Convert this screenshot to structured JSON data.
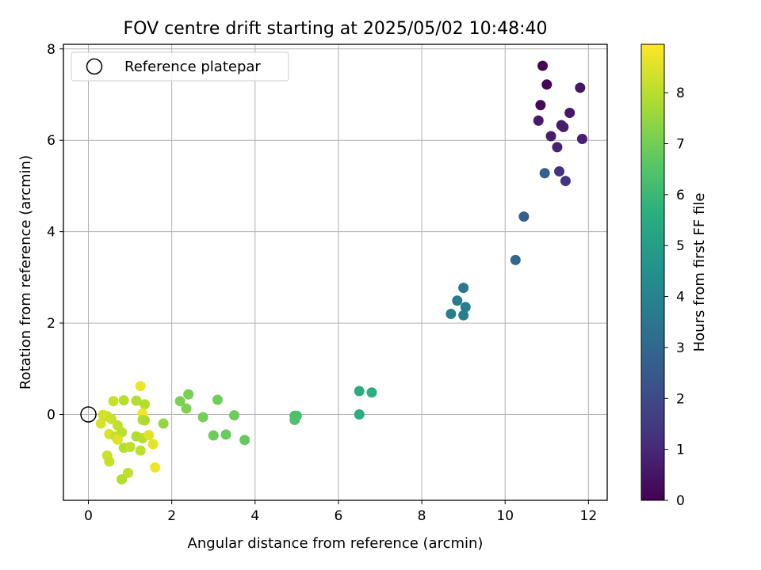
{
  "chart_data": {
    "type": "scatter",
    "title": "FOV centre drift starting at 2025/05/02 10:48:40",
    "xlabel": "Angular distance from reference (arcmin)",
    "ylabel": "Rotation from reference (arcmin)",
    "xlim": [
      -0.6,
      12.45
    ],
    "ylim": [
      -1.88,
      8.1
    ],
    "xticks": [
      0,
      2,
      4,
      6,
      8,
      10,
      12
    ],
    "yticks": [
      0,
      2,
      4,
      6,
      8
    ],
    "grid": true,
    "legend": {
      "position": "top-left",
      "entries": [
        "Reference platepar"
      ]
    },
    "reference_point": {
      "x": 0,
      "y": 0,
      "marker": "open-circle"
    },
    "colorbar": {
      "label": "Hours from first FF file",
      "range": [
        0,
        8.95
      ],
      "ticks": [
        0,
        1,
        2,
        3,
        4,
        5,
        6,
        7,
        8
      ],
      "colormap": "viridis"
    },
    "points": [
      {
        "x": 10.9,
        "y": 7.63,
        "c": 0.05
      },
      {
        "x": 11.0,
        "y": 7.22,
        "c": 0.1
      },
      {
        "x": 10.85,
        "y": 6.77,
        "c": 0.15
      },
      {
        "x": 11.8,
        "y": 7.15,
        "c": 0.5
      },
      {
        "x": 11.55,
        "y": 6.6,
        "c": 0.55
      },
      {
        "x": 10.8,
        "y": 6.43,
        "c": 0.6
      },
      {
        "x": 11.35,
        "y": 6.33,
        "c": 0.65
      },
      {
        "x": 11.4,
        "y": 6.29,
        "c": 0.7
      },
      {
        "x": 11.1,
        "y": 6.09,
        "c": 0.75
      },
      {
        "x": 11.85,
        "y": 6.03,
        "c": 0.8
      },
      {
        "x": 11.25,
        "y": 5.85,
        "c": 0.85
      },
      {
        "x": 11.3,
        "y": 5.32,
        "c": 1.3
      },
      {
        "x": 11.45,
        "y": 5.11,
        "c": 1.4
      },
      {
        "x": 10.95,
        "y": 5.28,
        "c": 2.7
      },
      {
        "x": 10.45,
        "y": 4.33,
        "c": 2.8
      },
      {
        "x": 10.25,
        "y": 3.38,
        "c": 3.0
      },
      {
        "x": 9.0,
        "y": 2.77,
        "c": 3.6
      },
      {
        "x": 8.85,
        "y": 2.49,
        "c": 3.7
      },
      {
        "x": 9.05,
        "y": 2.35,
        "c": 3.8
      },
      {
        "x": 8.7,
        "y": 2.2,
        "c": 3.75
      },
      {
        "x": 9.0,
        "y": 2.17,
        "c": 3.85
      },
      {
        "x": 6.5,
        "y": 0.51,
        "c": 5.5
      },
      {
        "x": 6.8,
        "y": 0.48,
        "c": 5.6
      },
      {
        "x": 6.5,
        "y": 0.0,
        "c": 5.55
      },
      {
        "x": 4.95,
        "y": -0.03,
        "c": 6.3
      },
      {
        "x": 5.0,
        "y": -0.03,
        "c": 6.35
      },
      {
        "x": 4.95,
        "y": -0.12,
        "c": 6.4
      },
      {
        "x": 2.4,
        "y": 0.44,
        "c": 7.1
      },
      {
        "x": 3.1,
        "y": 0.32,
        "c": 7.0
      },
      {
        "x": 2.2,
        "y": 0.29,
        "c": 7.15
      },
      {
        "x": 2.35,
        "y": 0.13,
        "c": 7.2
      },
      {
        "x": 2.75,
        "y": -0.06,
        "c": 7.05
      },
      {
        "x": 3.5,
        "y": -0.02,
        "c": 6.95
      },
      {
        "x": 3.0,
        "y": -0.46,
        "c": 6.9
      },
      {
        "x": 3.3,
        "y": -0.44,
        "c": 6.85
      },
      {
        "x": 3.75,
        "y": -0.56,
        "c": 6.8
      },
      {
        "x": 1.8,
        "y": -0.2,
        "c": 7.5
      },
      {
        "x": 1.25,
        "y": 0.62,
        "c": 8.7
      },
      {
        "x": 0.6,
        "y": 0.29,
        "c": 8.2
      },
      {
        "x": 0.85,
        "y": 0.31,
        "c": 8.0
      },
      {
        "x": 1.15,
        "y": 0.3,
        "c": 7.9
      },
      {
        "x": 1.35,
        "y": 0.22,
        "c": 7.95
      },
      {
        "x": 1.3,
        "y": 0.02,
        "c": 8.8
      },
      {
        "x": 0.45,
        "y": -0.04,
        "c": 8.3
      },
      {
        "x": 0.35,
        "y": -0.01,
        "c": 8.35
      },
      {
        "x": 0.55,
        "y": -0.1,
        "c": 8.25
      },
      {
        "x": 0.3,
        "y": -0.2,
        "c": 8.4
      },
      {
        "x": 0.7,
        "y": -0.24,
        "c": 8.1
      },
      {
        "x": 1.3,
        "y": -0.12,
        "c": 8.0
      },
      {
        "x": 1.35,
        "y": -0.13,
        "c": 7.85
      },
      {
        "x": 0.5,
        "y": -0.43,
        "c": 8.45
      },
      {
        "x": 0.65,
        "y": -0.48,
        "c": 8.15
      },
      {
        "x": 0.8,
        "y": -0.39,
        "c": 8.05
      },
      {
        "x": 1.15,
        "y": -0.48,
        "c": 7.9
      },
      {
        "x": 1.3,
        "y": -0.52,
        "c": 8.0
      },
      {
        "x": 1.45,
        "y": -0.45,
        "c": 8.55
      },
      {
        "x": 0.7,
        "y": -0.55,
        "c": 8.5
      },
      {
        "x": 1.55,
        "y": -0.65,
        "c": 8.6
      },
      {
        "x": 0.85,
        "y": -0.73,
        "c": 7.95
      },
      {
        "x": 1.0,
        "y": -0.71,
        "c": 8.1
      },
      {
        "x": 1.25,
        "y": -0.79,
        "c": 8.05
      },
      {
        "x": 0.45,
        "y": -0.9,
        "c": 8.3
      },
      {
        "x": 0.5,
        "y": -1.03,
        "c": 8.2
      },
      {
        "x": 0.95,
        "y": -1.28,
        "c": 8.1
      },
      {
        "x": 0.8,
        "y": -1.42,
        "c": 7.95
      },
      {
        "x": 1.6,
        "y": -1.16,
        "c": 8.75
      }
    ]
  }
}
